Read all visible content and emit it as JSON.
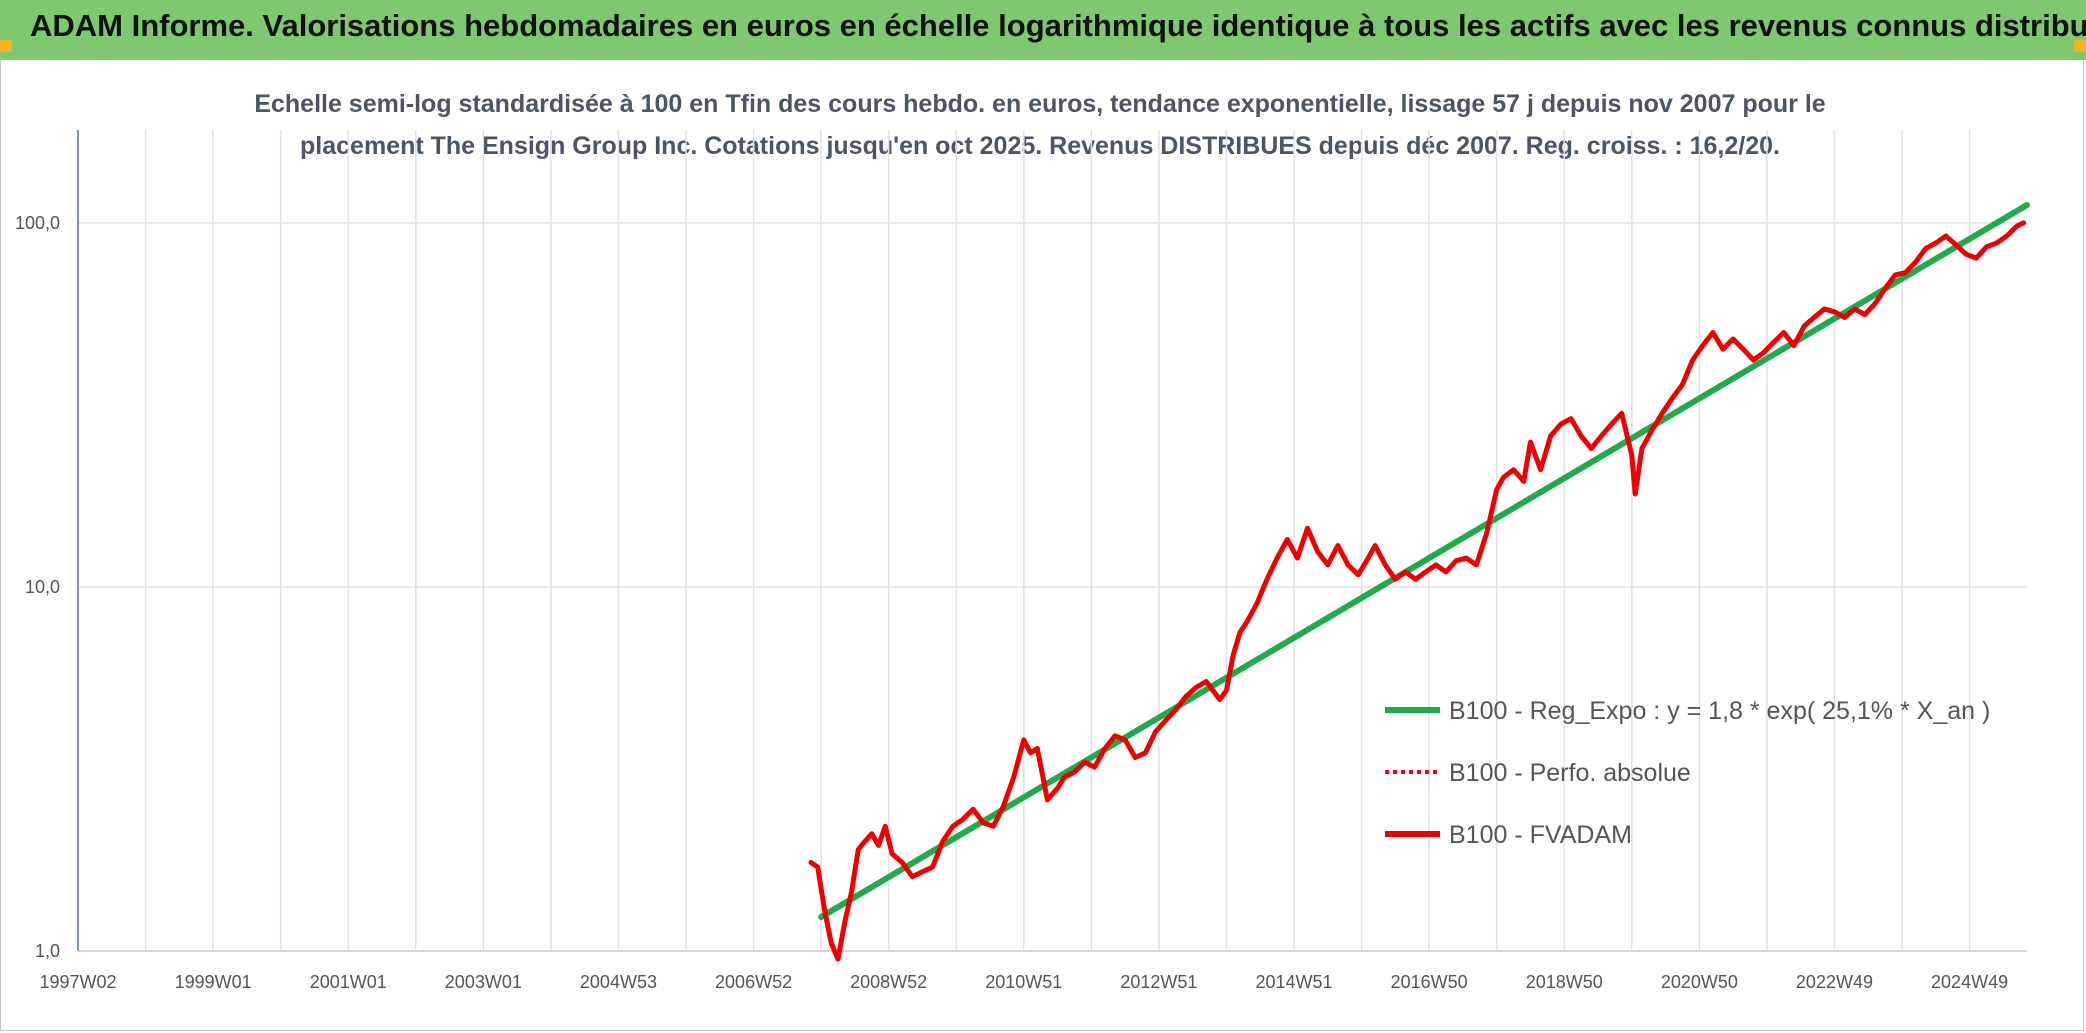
{
  "page": {
    "title": "ADAM Informe. Valorisations hebdomadaires en euros en échelle logarithmique identique à tous les actifs avec les revenus connus distribués",
    "subtitle_line1": "Echelle semi-log standardisée à 100 en Tfin des cours hebdo. en euros, tendance exponentielle, lissage 57 j depuis nov 2007 pour le",
    "subtitle_line2": "placement The Ensign Group Inc. Cotations jusqu'en oct 2025. Revenus DISTRIBUES depuis déc 2007. Reg. croiss. : 16,2/20.",
    "banner_color": "#7ec86f",
    "corner_color": "#f2b320"
  },
  "chart_data": {
    "type": "line",
    "y_scale": "log",
    "ylim": [
      1,
      180
    ],
    "y_ticks": [
      {
        "value": 1,
        "label": "1,0"
      },
      {
        "value": 10,
        "label": "10,0"
      },
      {
        "value": 100,
        "label": "100,0"
      }
    ],
    "x_range": [
      1997.0,
      2025.85
    ],
    "x_tick_labels": [
      "1997W02",
      "1999W01",
      "2001W01",
      "2003W01",
      "2004W53",
      "2006W52",
      "2008W52",
      "2010W51",
      "2012W51",
      "2014W51",
      "2016W50",
      "2018W50",
      "2020W50",
      "2022W49",
      "2024W49"
    ],
    "x_gridlines": [
      1997.0,
      1998.0,
      1999.0,
      2000.0,
      2001.0,
      2002.0,
      2003.0,
      2004.0,
      2005.0,
      2006.0,
      2007.0,
      2008.0,
      2009.0,
      2010.0,
      2011.0,
      2012.0,
      2013.0,
      2014.0,
      2015.0,
      2016.0,
      2017.0,
      2018.0,
      2019.0,
      2020.0,
      2021.0,
      2022.0,
      2023.0,
      2024.0,
      2025.0
    ],
    "grid": true,
    "legend_position": "right",
    "series": [
      {
        "name": "B100 - Reg_Expo : y = 1,8 * exp( 25,1% *  X_an )",
        "color": "#1faa4b",
        "style": "solid",
        "x": [
          2008.0,
          2025.85
        ],
        "y": [
          1.24,
          112.0
        ]
      },
      {
        "name": "B100 - Perfo. absolue",
        "color": "#ff0000",
        "style": "dotted",
        "x": [],
        "y": []
      },
      {
        "name": "B100 - FVADAM",
        "color": "#ee0000",
        "style": "solid",
        "x": [
          2007.85,
          2007.95,
          2008.05,
          2008.15,
          2008.25,
          2008.35,
          2008.45,
          2008.55,
          2008.65,
          2008.75,
          2008.85,
          2008.95,
          2009.05,
          2009.2,
          2009.35,
          2009.5,
          2009.65,
          2009.8,
          2009.95,
          2010.1,
          2010.25,
          2010.4,
          2010.55,
          2010.7,
          2010.85,
          2011.0,
          2011.1,
          2011.2,
          2011.35,
          2011.5,
          2011.6,
          2011.75,
          2011.9,
          2012.05,
          2012.2,
          2012.35,
          2012.5,
          2012.65,
          2012.8,
          2012.95,
          2013.1,
          2013.25,
          2013.4,
          2013.55,
          2013.7,
          2013.8,
          2013.9,
          2014.0,
          2014.1,
          2014.2,
          2014.3,
          2014.45,
          2014.6,
          2014.75,
          2014.9,
          2015.05,
          2015.2,
          2015.35,
          2015.5,
          2015.65,
          2015.8,
          2015.95,
          2016.1,
          2016.2,
          2016.35,
          2016.5,
          2016.65,
          2016.8,
          2016.95,
          2017.1,
          2017.25,
          2017.4,
          2017.55,
          2017.7,
          2017.85,
          2018.0,
          2018.1,
          2018.25,
          2018.4,
          2018.5,
          2018.65,
          2018.8,
          2018.95,
          2019.1,
          2019.25,
          2019.4,
          2019.55,
          2019.7,
          2019.85,
          2020.0,
          2020.05,
          2020.15,
          2020.3,
          2020.45,
          2020.6,
          2020.75,
          2020.9,
          2021.05,
          2021.2,
          2021.35,
          2021.5,
          2021.65,
          2021.8,
          2021.95,
          2022.1,
          2022.25,
          2022.4,
          2022.55,
          2022.7,
          2022.85,
          2023.0,
          2023.15,
          2023.3,
          2023.45,
          2023.6,
          2023.75,
          2023.9,
          2024.05,
          2024.2,
          2024.35,
          2024.5,
          2024.65,
          2024.8,
          2024.95,
          2025.1,
          2025.25,
          2025.4,
          2025.55,
          2025.7,
          2025.8
        ],
        "y": [
          1.75,
          1.7,
          1.3,
          1.05,
          0.95,
          1.2,
          1.45,
          1.9,
          2.0,
          2.1,
          1.95,
          2.2,
          1.85,
          1.75,
          1.6,
          1.65,
          1.7,
          2.0,
          2.2,
          2.3,
          2.45,
          2.25,
          2.2,
          2.5,
          3.0,
          3.8,
          3.5,
          3.6,
          2.6,
          2.8,
          3.0,
          3.1,
          3.3,
          3.2,
          3.6,
          3.9,
          3.8,
          3.4,
          3.5,
          4.0,
          4.3,
          4.6,
          5.0,
          5.3,
          5.5,
          5.2,
          4.9,
          5.2,
          6.5,
          7.5,
          8.0,
          9.0,
          10.5,
          12.0,
          13.5,
          12.0,
          14.5,
          12.5,
          11.5,
          13.0,
          11.5,
          10.8,
          12.0,
          13.0,
          11.5,
          10.5,
          11.0,
          10.5,
          11.0,
          11.5,
          11.0,
          11.8,
          12.0,
          11.5,
          14.0,
          18.5,
          20.0,
          21.0,
          19.5,
          25.0,
          21.0,
          26.0,
          28.0,
          29.0,
          26.0,
          24.0,
          26.0,
          28.0,
          30.0,
          23.0,
          18.0,
          24.0,
          27.0,
          30.0,
          33.0,
          36.0,
          42.0,
          46.0,
          50.0,
          45.0,
          48.0,
          45.0,
          42.0,
          44.0,
          47.0,
          50.0,
          46.0,
          52.0,
          55.0,
          58.0,
          57.0,
          55.0,
          58.0,
          56.0,
          60.0,
          66.0,
          72.0,
          73.0,
          78.0,
          85.0,
          88.0,
          92.0,
          87.0,
          82.0,
          80.0,
          86.0,
          88.0,
          92.0,
          98.0,
          100.0
        ]
      }
    ]
  }
}
